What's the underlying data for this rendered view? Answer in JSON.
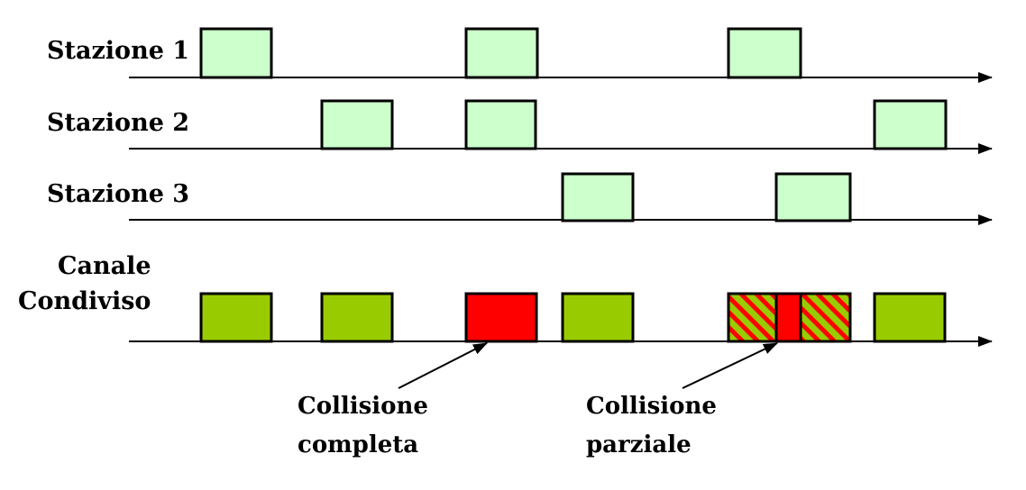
{
  "labels": {
    "station_1": "Stazione 1",
    "station_2": "Stazione 2",
    "station_3": "Stazione 3",
    "channel_line1": "Canale",
    "channel_line2": "Condiviso"
  },
  "annotations": {
    "complete_line1": "Collisione",
    "complete_line2": "completa",
    "partial_line1": "Collisione",
    "partial_line2": "parziale"
  },
  "colors": {
    "frame_light": "#ccffcc",
    "frame_ok": "#99cc00",
    "frame_collision": "#ff0000",
    "hatch_stripe": "#ff0000",
    "hatch_base": "#99cc00",
    "stroke": "#000000"
  }
}
